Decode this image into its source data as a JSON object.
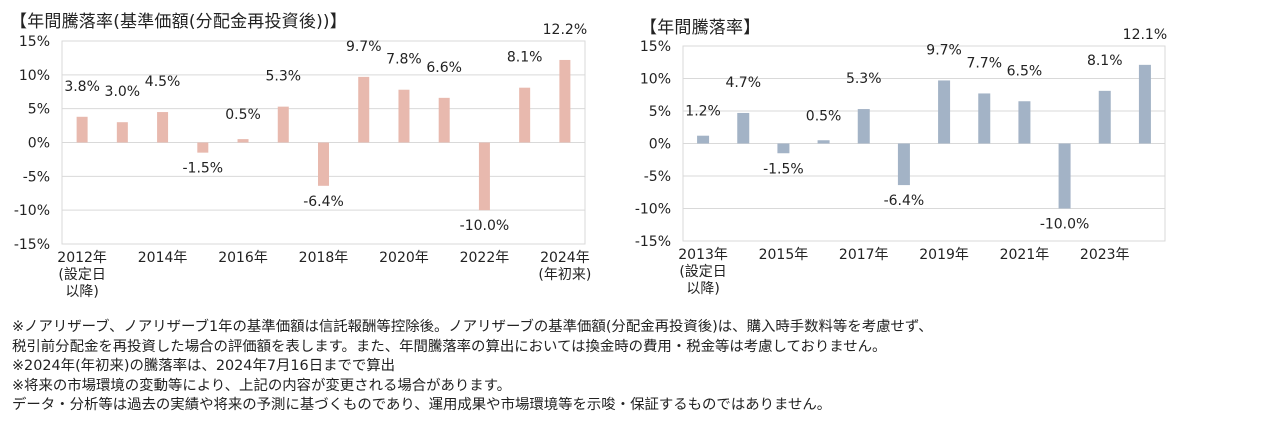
{
  "chart_data": [
    {
      "type": "bar",
      "title": "【年間騰落率(基準価額(分配金再投資後))】",
      "categories": [
        "2012年",
        "2013年",
        "2014年",
        "2015年",
        "2016年",
        "2017年",
        "2018年",
        "2019年",
        "2020年",
        "2021年",
        "2022年",
        "2023年",
        "2024年"
      ],
      "values": [
        3.8,
        3.0,
        4.5,
        -1.5,
        0.5,
        5.3,
        -6.4,
        9.7,
        7.8,
        6.6,
        -10.0,
        8.1,
        12.2
      ],
      "value_labels": [
        "3.8%",
        "3.0%",
        "4.5%",
        "-1.5%",
        "0.5%",
        "5.3%",
        "-6.4%",
        "9.7%",
        "7.8%",
        "6.6%",
        "-10.0%",
        "8.1%",
        "12.2%"
      ],
      "x_tick_labels": [
        [
          "2012年",
          "(設定日",
          "以降)"
        ],
        [
          "2014年"
        ],
        [
          "2016年"
        ],
        [
          "2018年"
        ],
        [
          "2020年"
        ],
        [
          "2022年"
        ],
        [
          "2024年",
          "(年初来)"
        ]
      ],
      "x_tick_index": [
        0,
        2,
        4,
        6,
        8,
        10,
        12
      ],
      "y_tick_values": [
        15,
        10,
        5,
        0,
        -5,
        -10,
        -15
      ],
      "y_tick_labels": [
        "15%",
        "10%",
        "5%",
        "0%",
        "-5%",
        "-10%",
        "-15%"
      ],
      "ylim": [
        -15,
        15
      ],
      "bar_color": "#e8b9ae",
      "xlabel": "",
      "ylabel": ""
    },
    {
      "type": "bar",
      "title": "【年間騰落率】",
      "categories": [
        "2013年",
        "2014年",
        "2015年",
        "2016年",
        "2017年",
        "2018年",
        "2019年",
        "2020年",
        "2021年",
        "2022年",
        "2023年",
        "2024年"
      ],
      "values": [
        1.2,
        4.7,
        -1.5,
        0.5,
        5.3,
        -6.4,
        9.7,
        7.7,
        6.5,
        -10.0,
        8.1,
        12.1
      ],
      "value_labels": [
        "1.2%",
        "4.7%",
        "-1.5%",
        "0.5%",
        "5.3%",
        "-6.4%",
        "9.7%",
        "7.7%",
        "6.5%",
        "-10.0%",
        "8.1%",
        "12.1%"
      ],
      "x_tick_labels": [
        [
          "2013年",
          "(設定日",
          "以降)"
        ],
        [
          "2015年"
        ],
        [
          "2017年"
        ],
        [
          "2019年"
        ],
        [
          "2021年"
        ],
        [
          "2023年"
        ]
      ],
      "x_tick_index": [
        0,
        2,
        4,
        6,
        8,
        10
      ],
      "y_tick_values": [
        15,
        10,
        5,
        0,
        -5,
        -10,
        -15
      ],
      "y_tick_labels": [
        "15%",
        "10%",
        "5%",
        "0%",
        "-5%",
        "-10%",
        "-15%"
      ],
      "ylim": [
        -15,
        15
      ],
      "bar_color": "#a3b3c6",
      "xlabel": "",
      "ylabel": ""
    }
  ],
  "notes": [
    "※ノアリザーブ、ノアリザーブ1年の基準価額は信託報酬等控除後。ノアリザーブの基準価額(分配金再投資後)は、購入時手数料等を考慮せず、",
    "税引前分配金を再投資した場合の評価額を表します。また、年間騰落率の算出においては換金時の費用・税金等は考慮しておりません。",
    "※2024年(年初来)の騰落率は、2024年7月16日までで算出",
    "※将来の市場環境の変動等により、上記の内容が変更される場合があります。",
    "データ・分析等は過去の実績や将来の予測に基づくものであり、運用成果や市場環境等を示唆・保証するものではありません。"
  ]
}
